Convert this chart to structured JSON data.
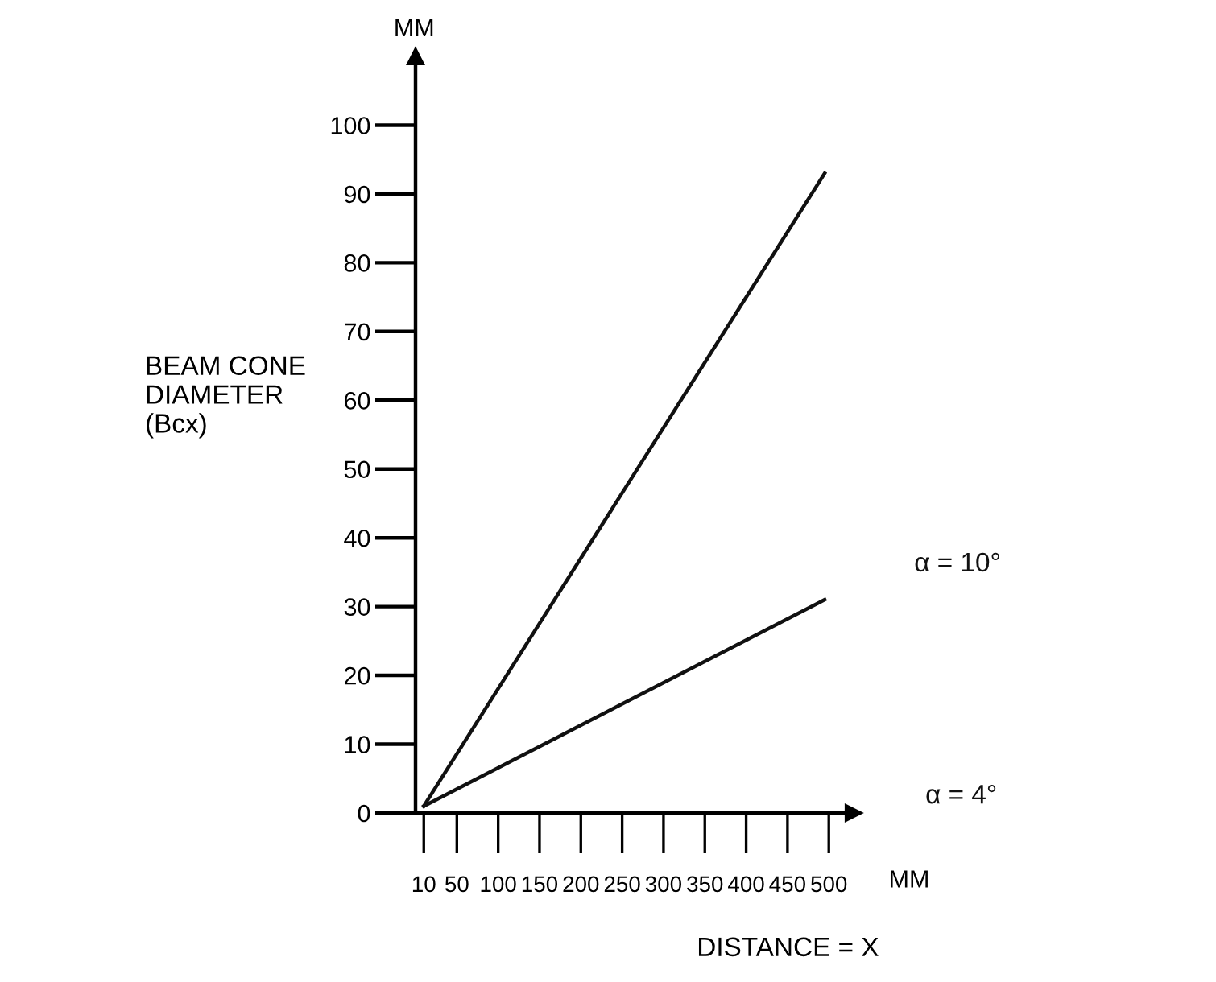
{
  "chart_data": {
    "type": "line",
    "xlabel": "DISTANCE = X",
    "ylabel": "BEAM CONE\nDIAMETER\n(Bcx)",
    "x": [
      10,
      495
    ],
    "series": [
      {
        "name": "α = 10°",
        "color": "#111111",
        "values": [
          1,
          93
        ]
      },
      {
        "name": "α = 4°",
        "color": "#111111",
        "values": [
          1,
          31
        ]
      }
    ],
    "xlim": [
      0,
      530
    ],
    "ylim": [
      0,
      110
    ],
    "xticks": [
      10,
      50,
      100,
      150,
      200,
      250,
      300,
      350,
      400,
      450,
      500
    ],
    "yticks": [
      0,
      10,
      20,
      30,
      40,
      50,
      60,
      70,
      80,
      90,
      100
    ],
    "annotations": [
      "MM",
      "MM"
    ],
    "grid": false,
    "legend": false,
    "marker": "none",
    "line_style": "solid"
  }
}
